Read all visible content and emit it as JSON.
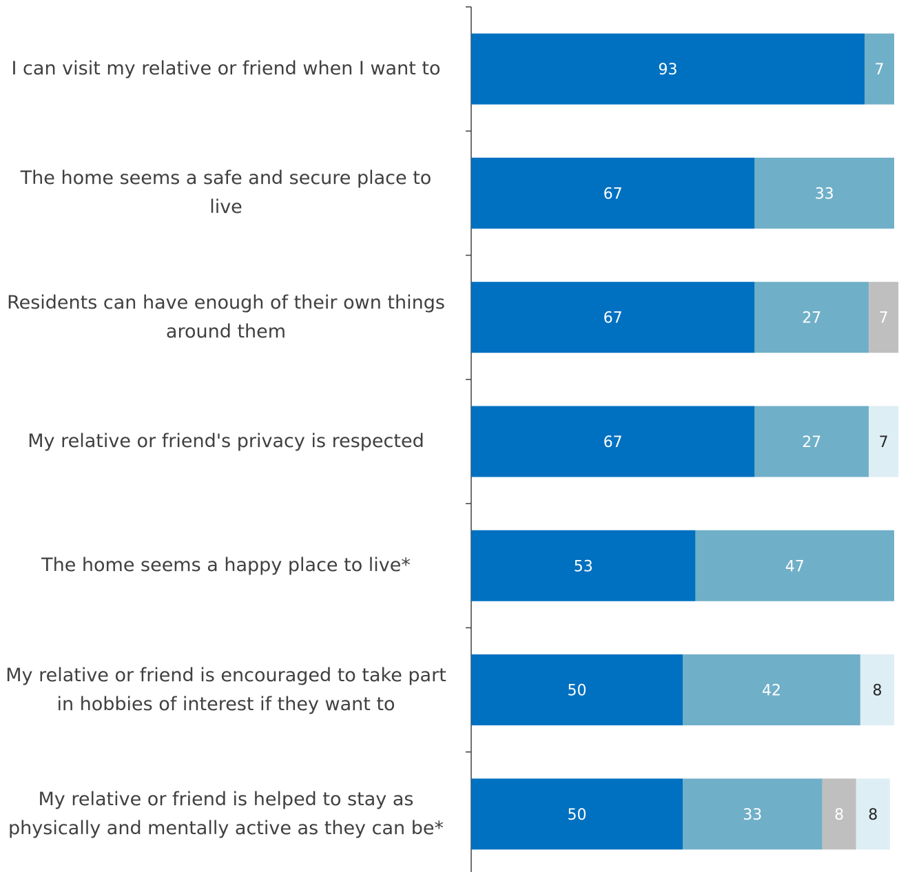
{
  "chart_data": {
    "type": "stacked-barh",
    "categories": [
      "I can visit my relative or friend when I want to",
      "The home seems a safe and secure place to live",
      "Residents can have enough of their own things around them",
      "My relative or friend's privacy is respected",
      "The home seems a happy place to live*",
      "My relative or friend is encouraged to take part in hobbies of interest if they want to",
      "My relative or friend is helped to stay as physically and mentally active as they can be*"
    ],
    "series": [
      {
        "color": "#0070c0",
        "values": [
          93,
          67,
          67,
          67,
          53,
          50,
          50
        ]
      },
      {
        "color": "#70afc8",
        "values": [
          7,
          33,
          27,
          27,
          47,
          42,
          33
        ]
      },
      {
        "color": "#bfbfbf",
        "values": [
          null,
          null,
          7,
          null,
          null,
          null,
          8
        ]
      },
      {
        "color": "#ddeef4",
        "values": [
          null,
          null,
          null,
          7,
          null,
          8,
          8
        ]
      }
    ],
    "xlim": [
      0,
      100
    ]
  }
}
